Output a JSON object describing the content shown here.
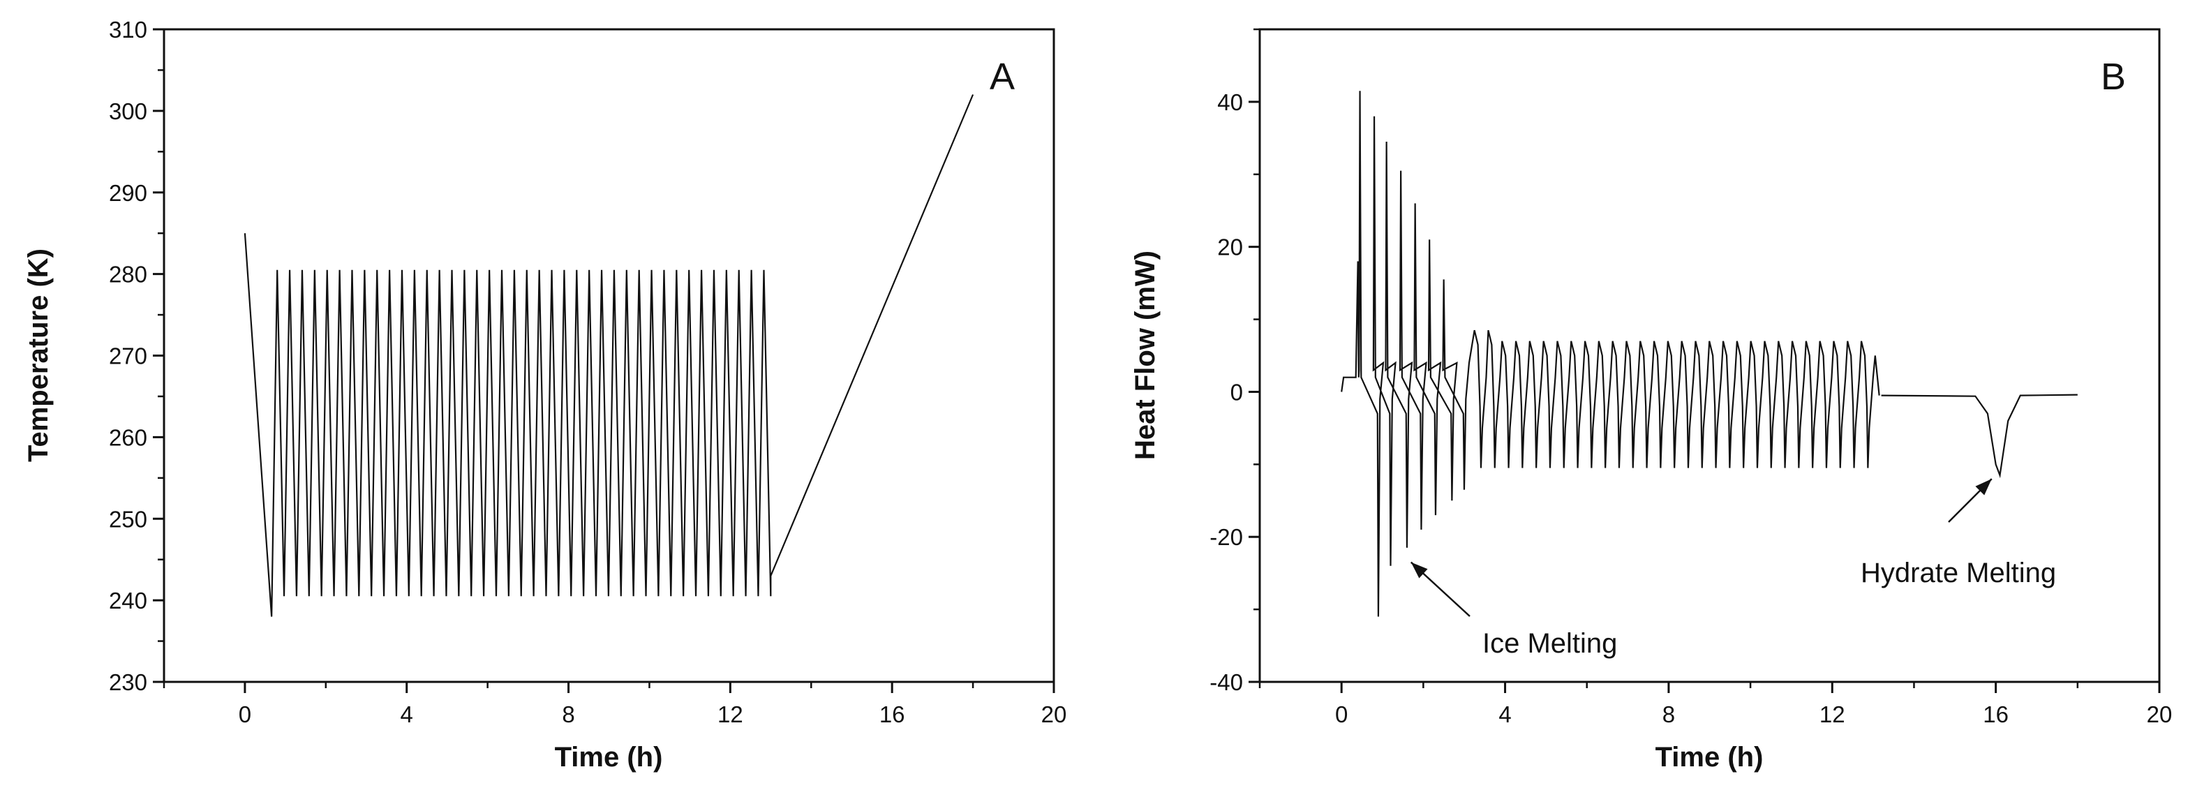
{
  "chart_data": [
    {
      "panel_label": "A",
      "type": "line",
      "xlabel": "Time (h)",
      "ylabel": "Temperature (K)",
      "xlim": [
        -2,
        20
      ],
      "ylim": [
        230,
        310
      ],
      "xticks": [
        0,
        4,
        8,
        12,
        16,
        20
      ],
      "yticks": [
        230,
        240,
        250,
        260,
        270,
        280,
        290,
        300,
        310
      ],
      "grid": false,
      "legend": "none",
      "series": [
        {
          "description": "initial cooling",
          "x": [
            0.0,
            0.66
          ],
          "y": [
            285.0,
            238.0
          ]
        },
        {
          "description": "temperature cycling between ~240.5 K and ~280.5 K",
          "cycle_start": 0.66,
          "cycle_end": 13.0,
          "cycles": 40,
          "y_min": 240.5,
          "y_max": 280.5
        },
        {
          "description": "final heating",
          "x": [
            13.0,
            18.0
          ],
          "y": [
            243.0,
            302.0
          ]
        }
      ]
    },
    {
      "panel_label": "B",
      "type": "line",
      "xlabel": "Time (h)",
      "ylabel": "Heat Flow (mW)",
      "xlim": [
        -2,
        20
      ],
      "ylim": [
        -40,
        50
      ],
      "xticks": [
        0,
        4,
        8,
        12,
        16,
        20
      ],
      "yticks": [
        -40,
        -20,
        0,
        20,
        40
      ],
      "grid": false,
      "legend": "none",
      "series": [
        {
          "description": "heat flow during cycling",
          "cycle_start": 0.5,
          "cycle_end": 13.0,
          "cycles": 40,
          "early_spike_peaks": [
            {
              "x": 0.45,
              "y": 41.5
            },
            {
              "x": 0.8,
              "y": 38.0
            },
            {
              "x": 1.1,
              "y": 34.5
            },
            {
              "x": 1.45,
              "y": 30.5
            },
            {
              "x": 1.8,
              "y": 26.0
            },
            {
              "x": 2.15,
              "y": 21.0
            },
            {
              "x": 2.5,
              "y": 15.5
            }
          ],
          "early_spike_troughs": [
            {
              "x": 0.9,
              "y": -31.0
            },
            {
              "x": 1.2,
              "y": -24.0
            },
            {
              "x": 1.6,
              "y": -21.5
            },
            {
              "x": 1.95,
              "y": -19.0
            },
            {
              "x": 2.3,
              "y": -17.0
            },
            {
              "x": 2.7,
              "y": -15.0
            },
            {
              "x": 3.0,
              "y": -13.5
            }
          ],
          "steady_max": 7.0,
          "steady_min": -10.5
        },
        {
          "description": "hydrate melting endotherm",
          "x": [
            13.2,
            15.5,
            15.8,
            16.0,
            16.1,
            16.3,
            16.6,
            18.0
          ],
          "y": [
            -0.5,
            -0.6,
            -3.0,
            -10.0,
            -11.5,
            -4.0,
            -0.5,
            -0.4
          ]
        }
      ],
      "annotations": [
        {
          "text": "Ice Melting",
          "target": {
            "x": 1.7,
            "y": -23.5
          }
        },
        {
          "text": "Hydrate Melting",
          "target": {
            "x": 15.9,
            "y": -12.0
          }
        }
      ]
    }
  ]
}
